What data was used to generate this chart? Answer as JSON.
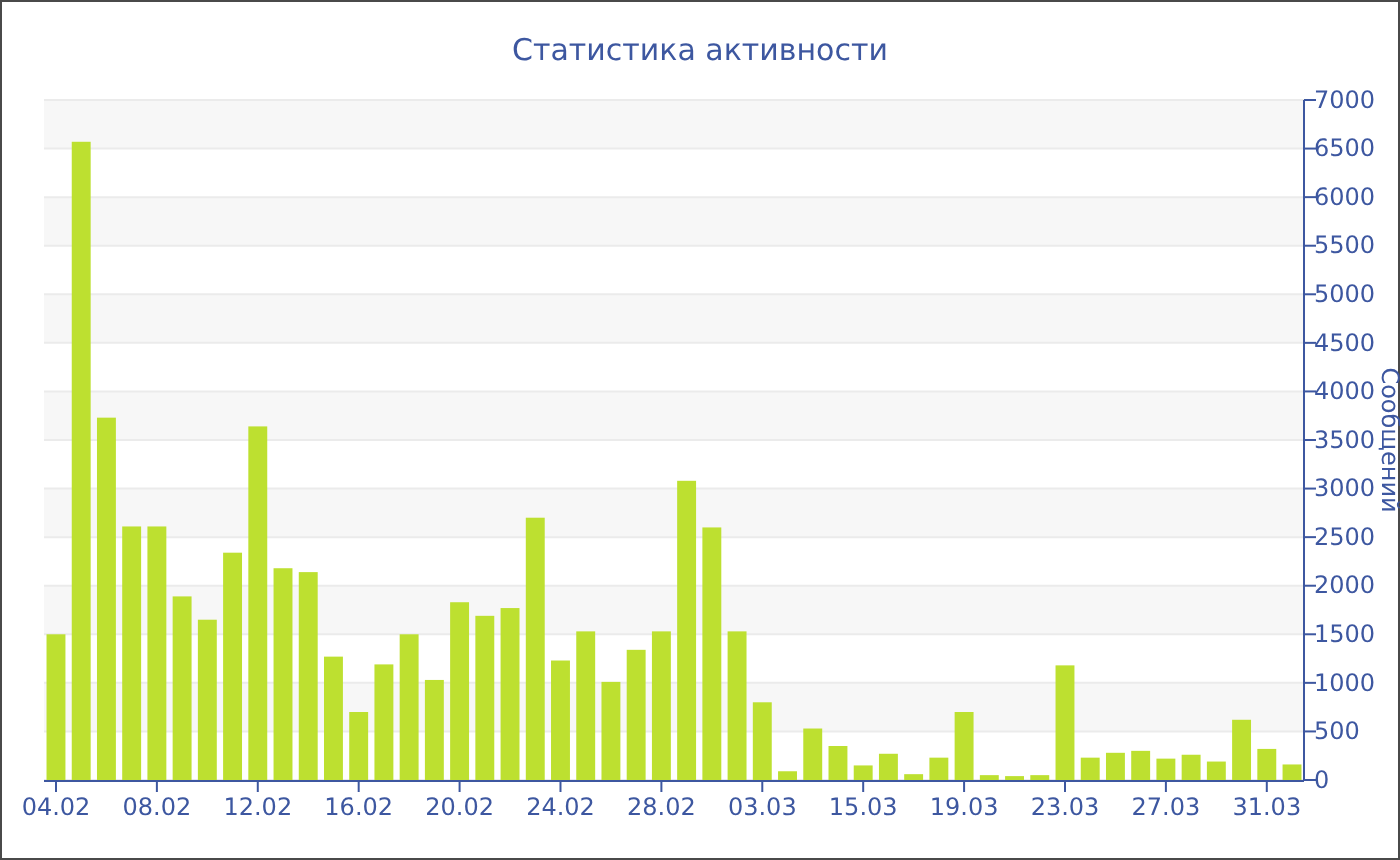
{
  "chart_data": {
    "type": "bar",
    "title": "Статистика активности",
    "ylabel": "Сообщений",
    "categories": [
      "04.02",
      null,
      null,
      null,
      "08.02",
      null,
      null,
      null,
      "12.02",
      null,
      null,
      null,
      "16.02",
      null,
      null,
      null,
      "20.02",
      null,
      null,
      null,
      "24.02",
      null,
      null,
      null,
      "28.02",
      null,
      null,
      null,
      "03.03",
      null,
      null,
      null,
      "15.03",
      null,
      null,
      null,
      "19.03",
      null,
      null,
      null,
      "23.03",
      null,
      null,
      null,
      "27.03",
      null,
      null,
      null,
      "31.03",
      null
    ],
    "values": [
      1500,
      6570,
      3730,
      2610,
      2610,
      1890,
      1650,
      2340,
      3640,
      2180,
      2140,
      1270,
      700,
      1190,
      1500,
      1030,
      1830,
      1690,
      1770,
      2700,
      1230,
      1530,
      1010,
      1340,
      1530,
      3080,
      2600,
      1530,
      800,
      90,
      530,
      350,
      150,
      270,
      60,
      230,
      700,
      50,
      40,
      50,
      1180,
      230,
      280,
      300,
      220,
      260,
      190,
      620,
      320,
      160
    ],
    "color": "#bde030",
    "ylim": [
      0,
      7000
    ],
    "yticks": [
      0,
      500,
      1000,
      1500,
      2000,
      2500,
      3000,
      3500,
      4000,
      4500,
      5000,
      5500,
      6000,
      6500,
      7000
    ],
    "grid": true
  }
}
